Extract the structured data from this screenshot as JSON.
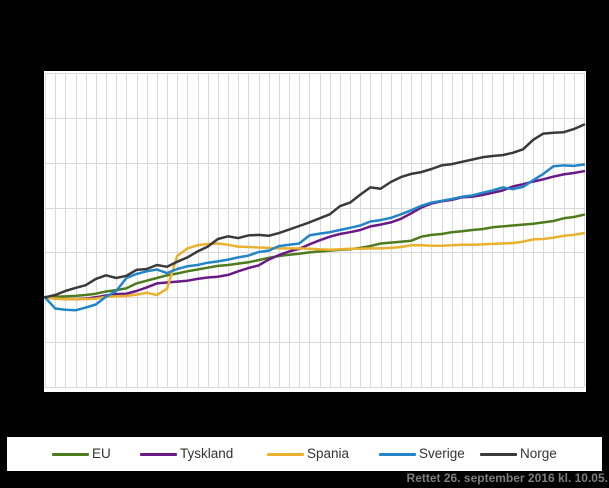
{
  "figure": {
    "background": "#000000",
    "plot_background": "#ffffff",
    "gridline_color": "#d9d9d9",
    "status_note": "Rettet 26. september 2016 kl. 10.05."
  },
  "legend": {
    "items": [
      {
        "label": "EU",
        "color": "#4e7c1d"
      },
      {
        "label": "Tyskland",
        "color": "#6a1a86"
      },
      {
        "label": "Spania",
        "color": "#eab12e"
      },
      {
        "label": "Sverige",
        "color": "#2285c7"
      },
      {
        "label": "Norge",
        "color": "#3a3a3a"
      }
    ]
  },
  "chart_data": {
    "type": "line",
    "title": "",
    "xlabel": "",
    "ylabel": "",
    "x_count": 54,
    "x_labels_visible": false,
    "y_axis": {
      "min": 80,
      "max": 150,
      "gridline_step": 10,
      "labels_visible": false,
      "base_index": 100
    },
    "grid": true,
    "legend_position": "bottom",
    "series": [
      {
        "name": "EU",
        "color": "#4e7c1d",
        "values": [
          100.0,
          100.1,
          100.2,
          100.3,
          100.5,
          100.8,
          101.3,
          101.6,
          102.0,
          103.1,
          103.7,
          104.3,
          104.9,
          105.3,
          105.8,
          106.2,
          106.6,
          107.0,
          107.2,
          107.5,
          107.8,
          108.3,
          108.8,
          109.2,
          109.5,
          109.7,
          110.0,
          110.2,
          110.4,
          110.6,
          110.7,
          111.0,
          111.4,
          112.0,
          112.2,
          112.4,
          112.6,
          113.5,
          113.9,
          114.1,
          114.5,
          114.7,
          115.0,
          115.2,
          115.6,
          115.8,
          116.0,
          116.2,
          116.4,
          116.7,
          117.0,
          117.6,
          117.9,
          118.4
        ]
      },
      {
        "name": "Tyskland",
        "color": "#6a1a86",
        "values": [
          100.0,
          99.7,
          99.6,
          99.6,
          99.7,
          100.0,
          100.4,
          100.7,
          100.8,
          101.4,
          102.2,
          103.1,
          103.3,
          103.5,
          103.7,
          104.1,
          104.4,
          104.6,
          105.0,
          105.8,
          106.5,
          107.1,
          108.4,
          109.4,
          110.2,
          110.8,
          111.8,
          112.7,
          113.5,
          114.1,
          114.5,
          115.0,
          115.8,
          116.2,
          116.7,
          117.5,
          118.7,
          120.0,
          120.9,
          121.4,
          121.7,
          122.3,
          122.4,
          122.8,
          123.3,
          123.8,
          124.7,
          125.2,
          125.8,
          126.3,
          126.9,
          127.4,
          127.7,
          128.1
        ]
      },
      {
        "name": "Spania",
        "color": "#eab12e",
        "values": [
          100.0,
          99.7,
          99.6,
          99.6,
          99.6,
          99.7,
          100.1,
          100.2,
          100.3,
          100.6,
          101.0,
          100.5,
          101.9,
          109.2,
          110.9,
          111.6,
          111.9,
          112.0,
          111.7,
          111.3,
          111.2,
          111.1,
          111.0,
          110.9,
          110.9,
          110.9,
          110.8,
          110.7,
          110.6,
          110.7,
          110.8,
          110.8,
          110.9,
          110.9,
          111.0,
          111.2,
          111.6,
          111.6,
          111.5,
          111.5,
          111.6,
          111.7,
          111.7,
          111.8,
          111.9,
          112.0,
          112.1,
          112.4,
          112.9,
          113.0,
          113.3,
          113.7,
          113.9,
          114.3
        ]
      },
      {
        "name": "Sverige",
        "color": "#2285c7",
        "values": [
          100.0,
          97.5,
          97.2,
          97.1,
          97.7,
          98.4,
          100.1,
          101.4,
          104.3,
          105.2,
          105.8,
          106.2,
          105.4,
          106.3,
          106.9,
          107.2,
          107.7,
          108.0,
          108.4,
          108.9,
          109.3,
          110.1,
          110.4,
          111.4,
          111.7,
          112.0,
          113.8,
          114.2,
          114.5,
          115.0,
          115.5,
          116.0,
          116.9,
          117.2,
          117.7,
          118.5,
          119.4,
          120.4,
          121.1,
          121.5,
          121.9,
          122.4,
          122.7,
          123.3,
          123.8,
          124.5,
          124.1,
          124.6,
          126.1,
          127.5,
          129.2,
          129.4,
          129.3,
          129.6
        ]
      },
      {
        "name": "Norge",
        "color": "#3a3a3a",
        "values": [
          100.0,
          100.5,
          101.4,
          102.1,
          102.7,
          104.1,
          104.9,
          104.3,
          104.8,
          106.1,
          106.3,
          107.2,
          106.8,
          107.9,
          108.9,
          110.2,
          111.3,
          113.0,
          113.6,
          113.2,
          113.8,
          113.9,
          113.7,
          114.3,
          115.1,
          115.9,
          116.7,
          117.6,
          118.5,
          120.3,
          121.1,
          122.9,
          124.5,
          124.2,
          125.7,
          126.8,
          127.5,
          127.9,
          128.6,
          129.4,
          129.7,
          130.2,
          130.7,
          131.2,
          131.5,
          131.7,
          132.2,
          133.0,
          135.1,
          136.5,
          136.7,
          136.8,
          137.5,
          138.5
        ]
      }
    ]
  }
}
